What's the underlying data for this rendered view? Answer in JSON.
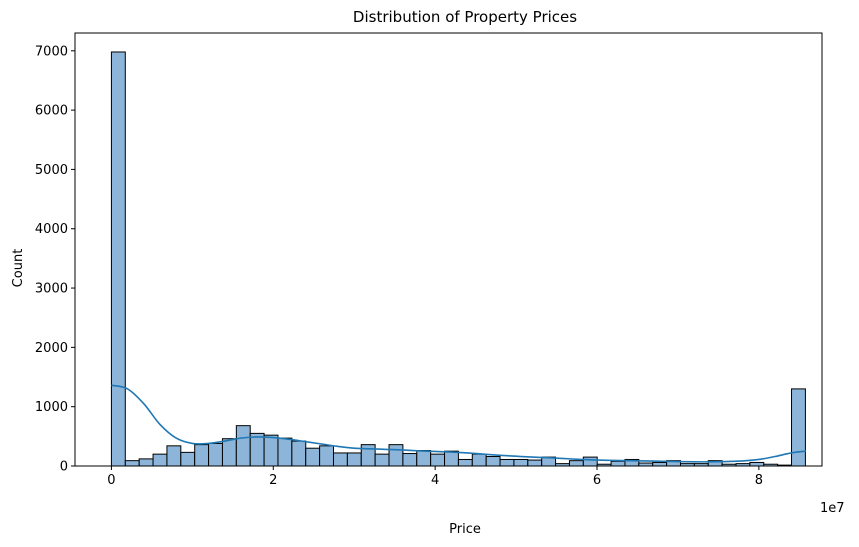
{
  "chart_data": {
    "type": "bar",
    "title": "Distribution of Property Prices",
    "xlabel": "Price",
    "ylabel": "Count",
    "x_offset_label": "1e7",
    "xlim": [
      -0.45,
      8.78
    ],
    "ylim": [
      0,
      7300
    ],
    "x_ticks": [
      0,
      2,
      4,
      6,
      8
    ],
    "x_tick_labels": [
      "0",
      "2",
      "4",
      "6",
      "8"
    ],
    "y_ticks": [
      0,
      1000,
      2000,
      3000,
      4000,
      5000,
      6000,
      7000
    ],
    "y_tick_labels": [
      "0",
      "1000",
      "2000",
      "3000",
      "4000",
      "5000",
      "6000",
      "7000"
    ],
    "bin_start": 0,
    "bin_width": 0.1715,
    "values": [
      6980,
      90,
      120,
      200,
      340,
      230,
      360,
      380,
      460,
      680,
      550,
      520,
      470,
      420,
      300,
      340,
      220,
      220,
      360,
      200,
      360,
      210,
      260,
      200,
      250,
      110,
      200,
      160,
      110,
      110,
      100,
      150,
      40,
      90,
      150,
      30,
      80,
      110,
      50,
      60,
      90,
      40,
      40,
      90,
      30,
      40,
      60,
      30,
      15,
      1300
    ],
    "kde": {
      "x": [
        0,
        0.2,
        0.4,
        0.6,
        0.8,
        1.0,
        1.2,
        1.4,
        1.6,
        1.8,
        2.0,
        2.2,
        2.4,
        2.6,
        2.8,
        3.0,
        3.2,
        3.4,
        3.6,
        3.8,
        4.0,
        4.2,
        4.4,
        4.6,
        4.8,
        5.0,
        5.2,
        5.4,
        5.6,
        5.8,
        6.0,
        6.2,
        6.4,
        6.6,
        6.8,
        7.0,
        7.2,
        7.4,
        7.6,
        7.8,
        8.0,
        8.2,
        8.4,
        8.58
      ],
      "y": [
        1360,
        1300,
        1050,
        700,
        470,
        380,
        380,
        420,
        470,
        490,
        480,
        450,
        410,
        370,
        330,
        300,
        290,
        280,
        270,
        255,
        245,
        235,
        220,
        200,
        180,
        165,
        150,
        140,
        125,
        110,
        100,
        95,
        90,
        85,
        80,
        75,
        70,
        70,
        75,
        85,
        110,
        160,
        220,
        250
      ]
    },
    "bar_fill": "#8db5d9",
    "bar_edge": "#000000",
    "kde_color": "#1f77b4",
    "grid": false,
    "legend": "none"
  }
}
